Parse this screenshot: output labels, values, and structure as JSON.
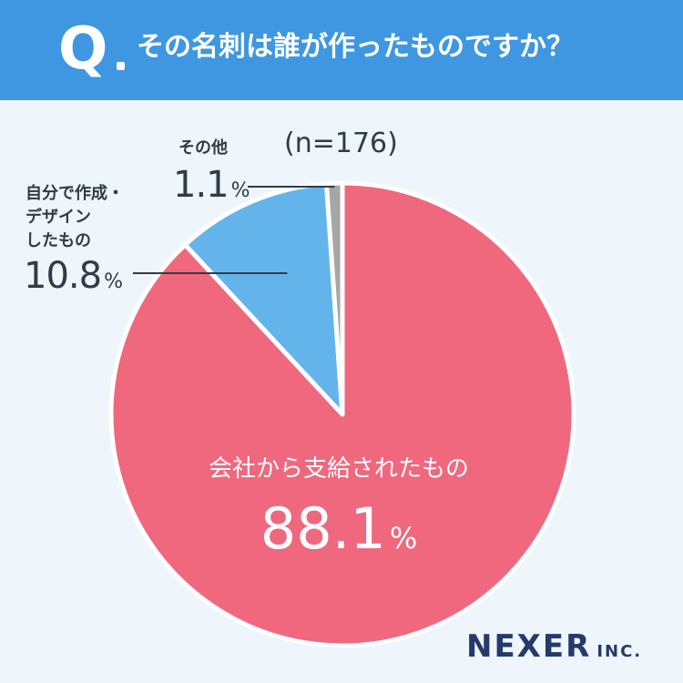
{
  "question": {
    "letter": "Q",
    "text": "その名刺は誰が作ったものですか？"
  },
  "sample_size": "(n=176)",
  "percent_unit": "%",
  "colors": {
    "header": "#3e97e0",
    "company": "#f0687e",
    "self": "#64b4ec",
    "other": "#a6a6a6",
    "background": "#eef5fb"
  },
  "chart_data": {
    "type": "pie",
    "start": "top",
    "direction": "clockwise",
    "slices": [
      {
        "label": "会社から支給されたもの",
        "value": 88.1,
        "value_label": "88.1",
        "color": "#f0687e"
      },
      {
        "label": "自分で作成・デザインしたもの",
        "value": 10.8,
        "value_label": "10.8",
        "color": "#64b4ec"
      },
      {
        "label": "その他",
        "value": 1.1,
        "value_label": "1.1",
        "color": "#a6a6a6"
      }
    ]
  },
  "labels": {
    "self_lines": [
      "自分で作成・",
      "デザイン",
      "したもの"
    ]
  },
  "logo": {
    "main": "NEXER",
    "sub": "INC."
  }
}
